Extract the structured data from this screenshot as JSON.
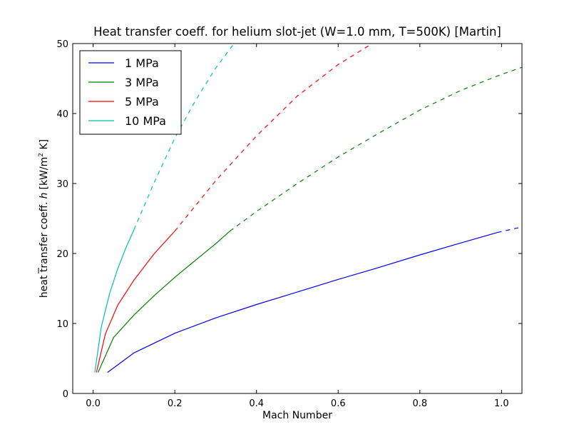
{
  "chart_data": {
    "type": "line",
    "title": "Heat transfer coeff. for helium slot-jet (W=1.0 mm, T=500K) [Martin]",
    "xlabel": "Mach Number",
    "ylabel_prefix": "heat transfer coeff.",
    "ylabel_symbol": "h",
    "ylabel_units_open": "[kW/m",
    "ylabel_units_sup": "2",
    "ylabel_units_close": " K]",
    "xlim": [
      -0.05,
      1.05
    ],
    "ylim": [
      0,
      50
    ],
    "xticks": [
      0.0,
      0.2,
      0.4,
      0.6,
      0.8,
      1.0
    ],
    "xtick_labels": [
      "0.0",
      "0.2",
      "0.4",
      "0.6",
      "0.8",
      "1.0"
    ],
    "yticks": [
      0,
      10,
      20,
      30,
      40,
      50
    ],
    "ytick_labels": [
      "0",
      "10",
      "20",
      "30",
      "40",
      "50"
    ],
    "grid": false,
    "legend_position": "top-left",
    "series": [
      {
        "name": "1 MPa",
        "color": "#0000ff",
        "solid": [
          [
            0.035,
            3.0
          ],
          [
            0.1,
            5.8
          ],
          [
            0.2,
            8.6
          ],
          [
            0.3,
            10.8
          ],
          [
            0.4,
            12.7
          ],
          [
            0.5,
            14.5
          ],
          [
            0.6,
            16.3
          ],
          [
            0.7,
            18.0
          ],
          [
            0.8,
            19.8
          ],
          [
            0.9,
            21.5
          ],
          [
            0.99,
            23.0
          ]
        ],
        "dashed": [
          [
            0.99,
            23.0
          ],
          [
            1.05,
            23.8
          ]
        ]
      },
      {
        "name": "3 MPa",
        "color": "#008000",
        "solid": [
          [
            0.012,
            3.0
          ],
          [
            0.05,
            8.0
          ],
          [
            0.1,
            11.2
          ],
          [
            0.15,
            14.0
          ],
          [
            0.2,
            16.6
          ],
          [
            0.25,
            19.0
          ],
          [
            0.3,
            21.4
          ],
          [
            0.335,
            23.2
          ]
        ],
        "dashed": [
          [
            0.335,
            23.2
          ],
          [
            0.4,
            26.0
          ],
          [
            0.5,
            30.0
          ],
          [
            0.6,
            33.8
          ],
          [
            0.7,
            37.2
          ],
          [
            0.8,
            40.5
          ],
          [
            0.9,
            43.3
          ],
          [
            1.0,
            45.6
          ],
          [
            1.05,
            46.6
          ]
        ]
      },
      {
        "name": "5 MPa",
        "color": "#ff0000",
        "solid": [
          [
            0.008,
            3.0
          ],
          [
            0.03,
            8.5
          ],
          [
            0.06,
            12.6
          ],
          [
            0.1,
            16.2
          ],
          [
            0.15,
            20.0
          ],
          [
            0.2,
            23.2
          ]
        ],
        "dashed": [
          [
            0.2,
            23.2
          ],
          [
            0.3,
            30.4
          ],
          [
            0.4,
            36.8
          ],
          [
            0.5,
            42.5
          ],
          [
            0.6,
            47.0
          ],
          [
            0.7,
            50.6
          ]
        ]
      },
      {
        "name": "10 MPa",
        "color": "#00bfbf",
        "solid": [
          [
            0.004,
            3.0
          ],
          [
            0.02,
            9.5
          ],
          [
            0.04,
            14.2
          ],
          [
            0.06,
            17.8
          ],
          [
            0.08,
            20.8
          ],
          [
            0.1,
            23.4
          ]
        ],
        "dashed": [
          [
            0.1,
            23.4
          ],
          [
            0.15,
            30.2
          ],
          [
            0.2,
            36.5
          ],
          [
            0.25,
            41.8
          ],
          [
            0.3,
            46.5
          ],
          [
            0.345,
            50.0
          ]
        ]
      }
    ]
  }
}
